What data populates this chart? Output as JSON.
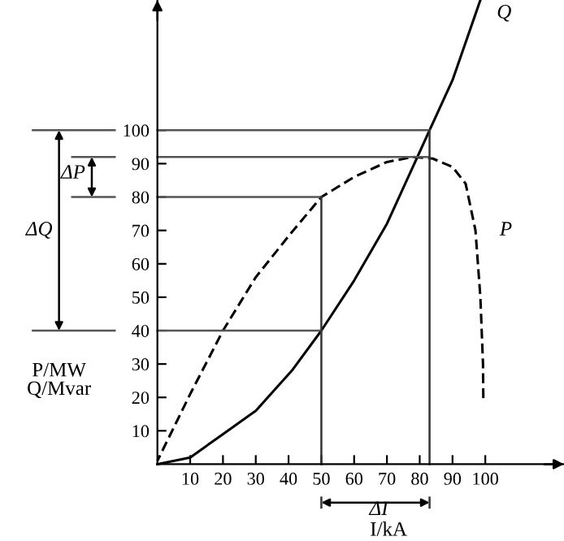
{
  "chart_data": {
    "type": "line",
    "xlabel": "I/kA",
    "ylabel": "P/MW\nQ/Mvar",
    "xlim": [
      -48,
      124
    ],
    "ylim": [
      -23,
      139
    ],
    "xticks": [
      10,
      20,
      30,
      40,
      50,
      60,
      70,
      80,
      90,
      100
    ],
    "yticks": [
      10,
      20,
      30,
      40,
      50,
      60,
      70,
      80,
      90,
      100
    ],
    "grid": false,
    "legend": false,
    "marker": "none",
    "series": [
      {
        "name": "Q",
        "color": "#000000",
        "line_style": "solid",
        "x": [
          0,
          10,
          20,
          30,
          41,
          50,
          60,
          70,
          83,
          90,
          98.5
        ],
        "values": [
          0,
          2,
          9,
          16,
          28,
          40,
          55,
          72,
          100,
          115,
          139
        ]
      },
      {
        "name": "P",
        "color": "#000000",
        "line_style": "dashed",
        "x": [
          0,
          10,
          20,
          30,
          41,
          50,
          60,
          70,
          78,
          84,
          90,
          94,
          97,
          98.5,
          99.3,
          99.4
        ],
        "values": [
          1,
          21,
          40,
          56,
          69.5,
          80,
          86,
          90.5,
          92,
          91.5,
          89,
          84,
          70,
          50,
          30,
          19
        ]
      }
    ],
    "ref_lines": [
      {
        "axis": "y",
        "value": 100,
        "label": null
      },
      {
        "axis": "y",
        "value": 92,
        "label": null
      },
      {
        "axis": "y",
        "value": 80,
        "label": null
      },
      {
        "axis": "y",
        "value": 40,
        "label": null
      },
      {
        "axis": "x",
        "value": 50,
        "label": null
      },
      {
        "axis": "x",
        "value": 83,
        "label": null
      }
    ],
    "annotations": [
      "ΔQ",
      "ΔP",
      "ΔI"
    ]
  }
}
